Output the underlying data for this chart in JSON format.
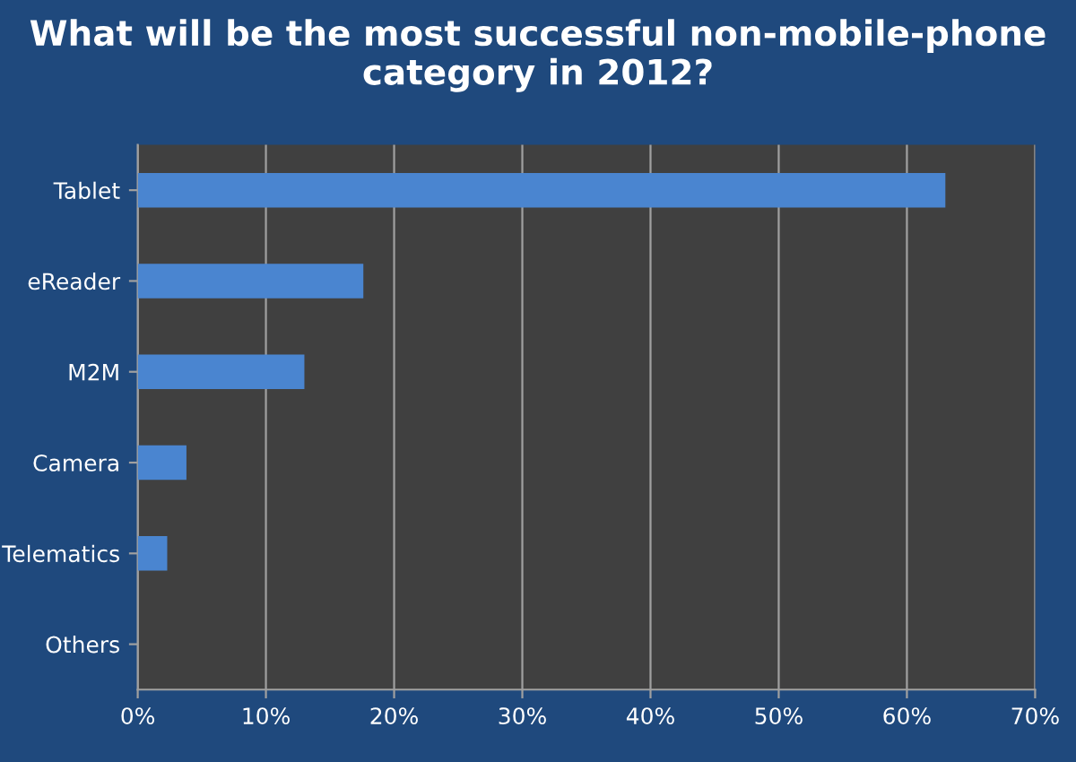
{
  "chart_data": {
    "type": "bar",
    "orientation": "horizontal",
    "title": "What will be the most successful non-mobile-phone\ncategory in 2012?",
    "categories": [
      "Tablet",
      "eReader",
      "M2M",
      "Camera",
      "Telematics",
      "Others"
    ],
    "values": [
      63.0,
      17.6,
      13.0,
      3.8,
      2.3,
      0
    ],
    "color": "#4a85d0",
    "xlim": [
      0,
      70
    ],
    "xticks": [
      {
        "value": 0,
        "label": "0%"
      },
      {
        "value": 10,
        "label": "10%"
      },
      {
        "value": 20,
        "label": "20%"
      },
      {
        "value": 30,
        "label": "30%"
      },
      {
        "value": 40,
        "label": "40%"
      },
      {
        "value": 50,
        "label": "50%"
      },
      {
        "value": 60,
        "label": "60%"
      },
      {
        "value": 70,
        "label": "70%"
      }
    ],
    "grid": "x",
    "legend": false
  }
}
